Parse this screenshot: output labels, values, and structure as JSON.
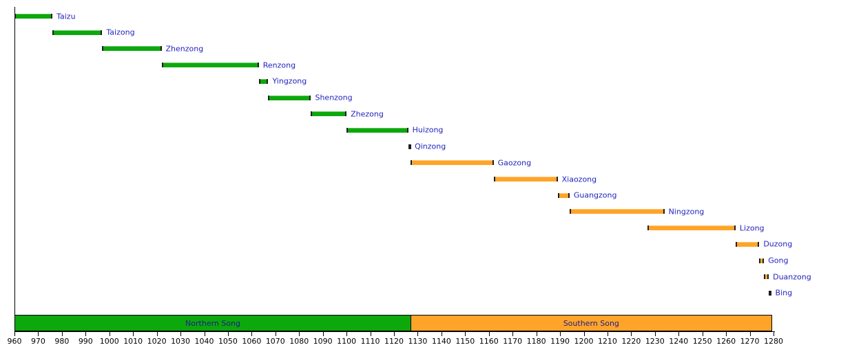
{
  "chart_data": {
    "type": "bar",
    "variant": "gantt-timeline",
    "title": "",
    "xlabel": "",
    "ylabel": "",
    "grid": false,
    "legend": "none",
    "x_axis": {
      "min": 960,
      "max": 1280,
      "tick_step": 10,
      "tick_labels": [
        "960",
        "970",
        "980",
        "990",
        "1000",
        "1010",
        "1020",
        "1030",
        "1040",
        "1050",
        "1060",
        "1070",
        "1080",
        "1090",
        "1100",
        "1110",
        "1120",
        "1130",
        "1140",
        "1150",
        "1160",
        "1170",
        "1180",
        "1190",
        "1200",
        "1210",
        "1220",
        "1230",
        "1240",
        "1250",
        "1260",
        "1270",
        "1280"
      ]
    },
    "emperors": [
      {
        "name": "Taizu",
        "start": 960,
        "end": 976,
        "period": "northern"
      },
      {
        "name": "Taizong",
        "start": 976,
        "end": 997,
        "period": "northern"
      },
      {
        "name": "Zhenzong",
        "start": 997,
        "end": 1022,
        "period": "northern"
      },
      {
        "name": "Renzong",
        "start": 1022,
        "end": 1063,
        "period": "northern"
      },
      {
        "name": "Yingzong",
        "start": 1063,
        "end": 1067,
        "period": "northern"
      },
      {
        "name": "Shenzong",
        "start": 1067,
        "end": 1085,
        "period": "northern"
      },
      {
        "name": "Zhezong",
        "start": 1085,
        "end": 1100,
        "period": "northern"
      },
      {
        "name": "Huizong",
        "start": 1100,
        "end": 1126,
        "period": "northern"
      },
      {
        "name": "Qinzong",
        "start": 1126,
        "end": 1127,
        "period": "northern"
      },
      {
        "name": "Gaozong",
        "start": 1127,
        "end": 1162,
        "period": "southern"
      },
      {
        "name": "Xiaozong",
        "start": 1162,
        "end": 1189,
        "period": "southern"
      },
      {
        "name": "Guangzong",
        "start": 1189,
        "end": 1194,
        "period": "southern"
      },
      {
        "name": "Ningzong",
        "start": 1194,
        "end": 1234,
        "period": "southern"
      },
      {
        "name": "Lizong",
        "start": 1227,
        "end": 1264,
        "period": "southern"
      },
      {
        "name": "Duzong",
        "start": 1264,
        "end": 1274,
        "period": "southern"
      },
      {
        "name": "Gong",
        "start": 1274,
        "end": 1276,
        "period": "southern"
      },
      {
        "name": "Duanzong",
        "start": 1276,
        "end": 1278,
        "period": "southern"
      },
      {
        "name": "Bing",
        "start": 1278,
        "end": 1279,
        "period": "southern"
      }
    ],
    "periods": [
      {
        "name": "Northern Song",
        "start": 960,
        "end": 1127,
        "color_key": "northern"
      },
      {
        "name": "Southern Song",
        "start": 1127,
        "end": 1279,
        "color_key": "southern"
      }
    ],
    "colors": {
      "northern": "#0CA80C",
      "southern": "#FFA428",
      "bar_cap": "#1E1E1E",
      "bar_label": "#2323BC",
      "period_label": "#1B1B8F",
      "axis": "#000000"
    }
  }
}
